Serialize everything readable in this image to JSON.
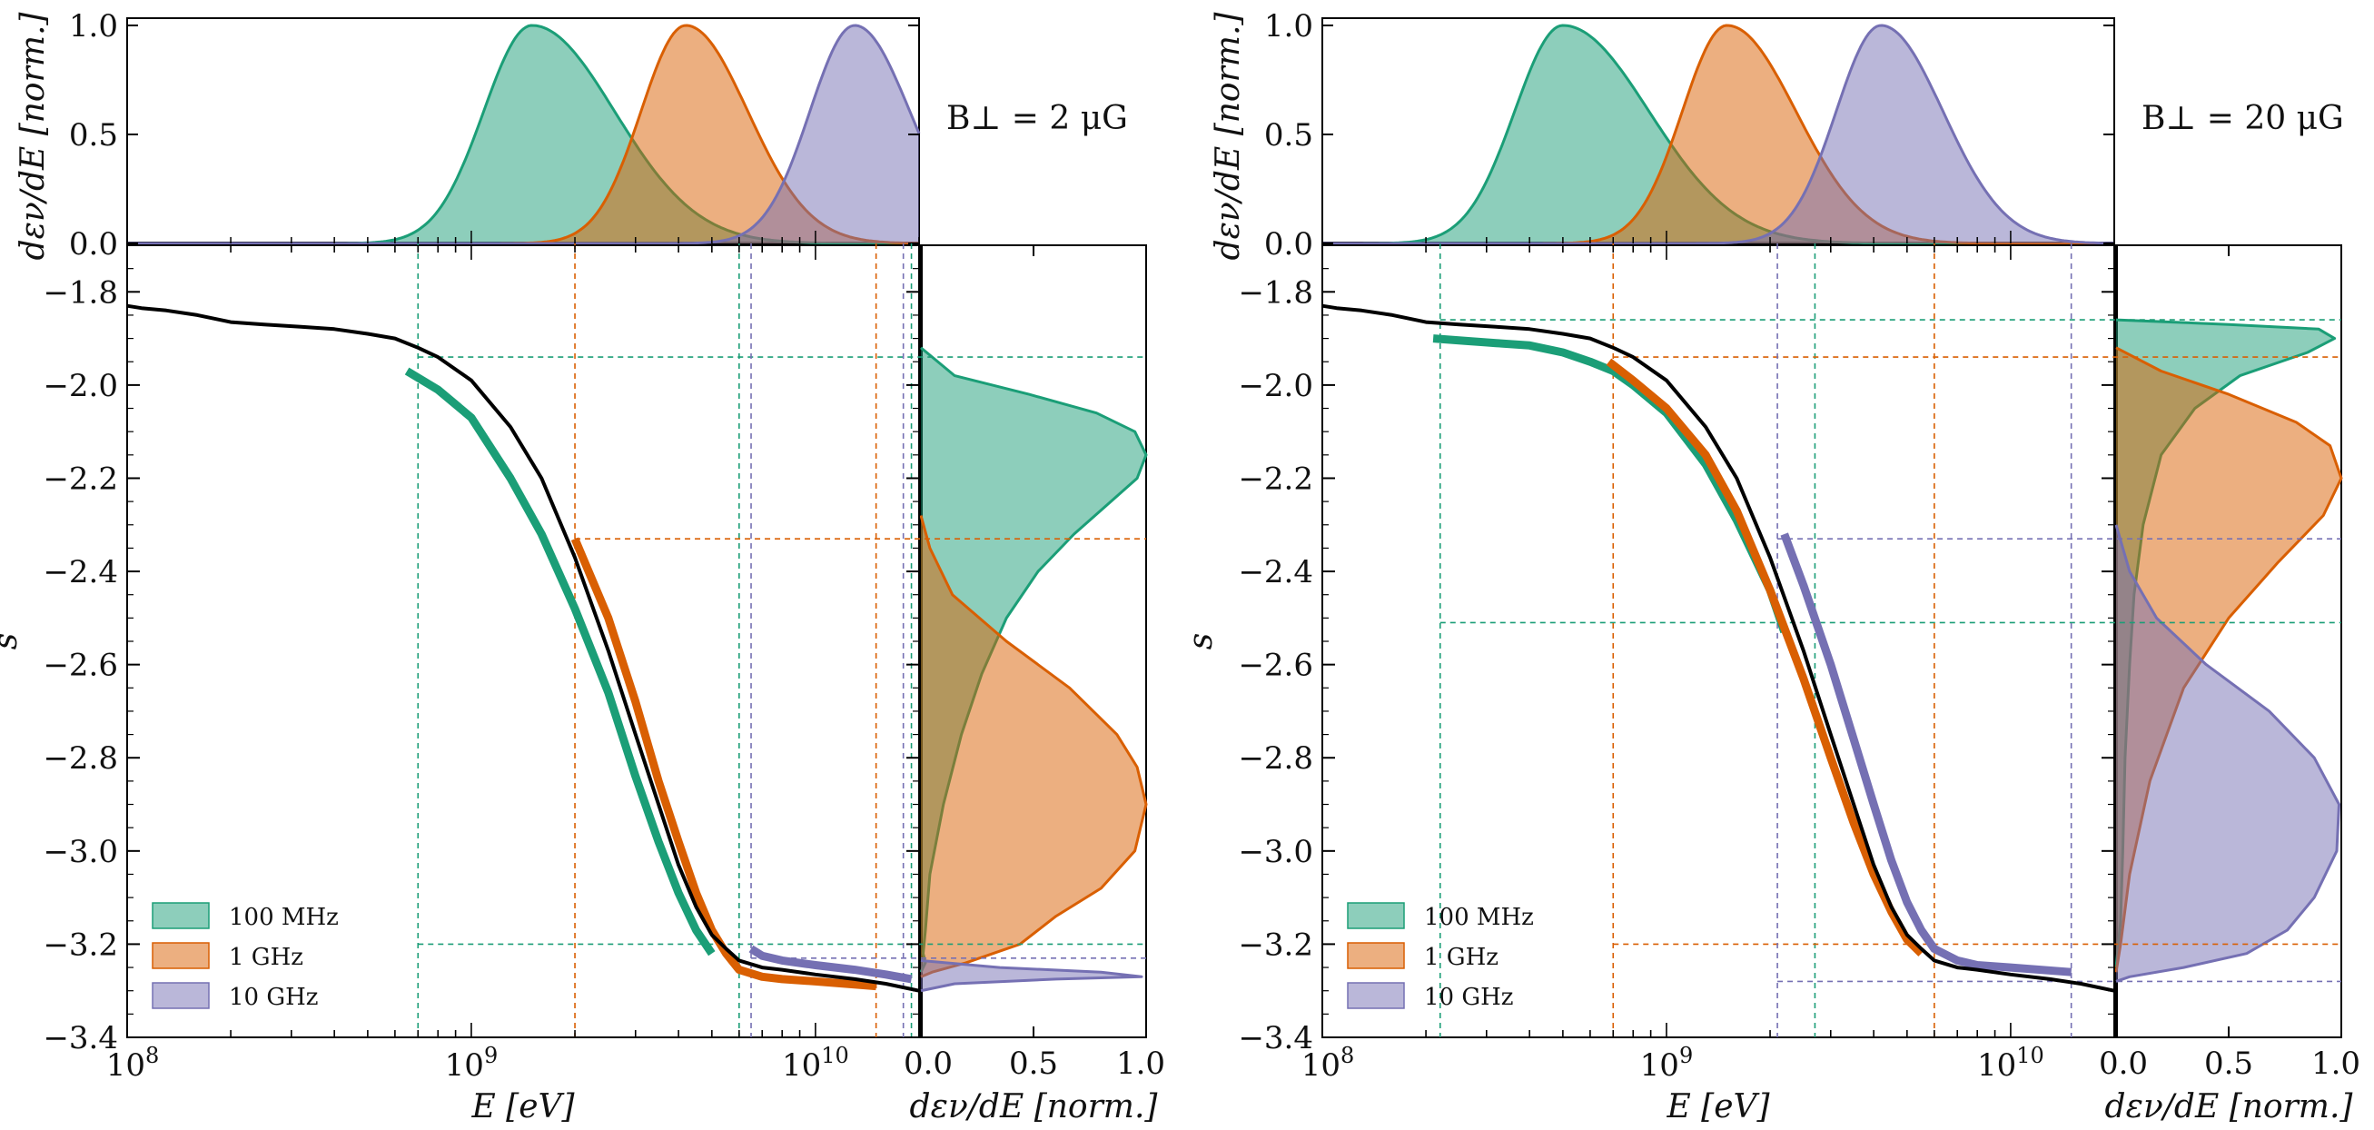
{
  "chart_data": {
    "type": "line",
    "colors": {
      "100 MHz": "#1b9e77",
      "1 GHz": "#d95f02",
      "10 GHz": "#7570b3",
      "total": "#000000"
    },
    "panels": [
      {
        "id": "left",
        "annotation": "B⊥ = 2 μG",
        "main": {
          "xlabel": "E [eV]",
          "ylabel": "s",
          "xscale": "log",
          "xlim": [
            100000000.0,
            20000000000.0
          ],
          "ylim": [
            -3.4,
            -1.7
          ],
          "xticks": [
            "10^8",
            "10^9",
            "10^10"
          ],
          "yticks": [
            "-1.8",
            "-2.0",
            "-2.2",
            "-2.4",
            "-2.6",
            "-2.8",
            "-3.0",
            "-3.2",
            "-3.4"
          ],
          "black_curve": {
            "name": "total",
            "x": [
              100000000.0,
              110000000.0,
              130000000.0,
              160000000.0,
              200000000.0,
              250000000.0,
              320000000.0,
              400000000.0,
              500000000.0,
              600000000.0,
              700000000.0,
              800000000.0,
              1000000000.0,
              1300000000.0,
              1600000000.0,
              2000000000.0,
              2500000000.0,
              3000000000.0,
              3500000000.0,
              4000000000.0,
              4500000000.0,
              5000000000.0,
              5500000000.0,
              6000000000.0,
              7000000000.0,
              8000000000.0,
              10000000000.0,
              13000000000.0,
              16000000000.0,
              20000000000.0
            ],
            "y": [
              -1.83,
              -1.835,
              -1.84,
              -1.85,
              -1.865,
              -1.87,
              -1.875,
              -1.88,
              -1.89,
              -1.9,
              -1.92,
              -1.94,
              -1.99,
              -2.09,
              -2.2,
              -2.37,
              -2.57,
              -2.75,
              -2.9,
              -3.03,
              -3.12,
              -3.18,
              -3.21,
              -3.235,
              -3.25,
              -3.255,
              -3.265,
              -3.275,
              -3.285,
              -3.3
            ]
          },
          "segments": [
            {
              "name": "100 MHz",
              "x": [
                650000000.0,
                800000000.0,
                1000000000.0,
                1300000000.0,
                1600000000.0,
                2000000000.0,
                2500000000.0,
                3000000000.0,
                3500000000.0,
                4000000000.0,
                4500000000.0,
                5000000000.0
              ],
              "y": [
                -1.97,
                -2.01,
                -2.07,
                -2.2,
                -2.32,
                -2.48,
                -2.66,
                -2.84,
                -2.98,
                -3.09,
                -3.17,
                -3.22
              ]
            },
            {
              "name": "1 GHz",
              "x": [
                2000000000.0,
                2500000000.0,
                3000000000.0,
                3500000000.0,
                4000000000.0,
                4500000000.0,
                5000000000.0,
                5500000000.0,
                6000000000.0,
                7000000000.0,
                8000000000.0,
                10000000000.0,
                15000000000.0
              ],
              "y": [
                -2.33,
                -2.5,
                -2.68,
                -2.85,
                -2.98,
                -3.09,
                -3.17,
                -3.22,
                -3.255,
                -3.27,
                -3.275,
                -3.28,
                -3.29
              ]
            },
            {
              "name": "10 GHz",
              "x": [
                6500000000.0,
                7000000000.0,
                8000000000.0,
                10000000000.0,
                13000000000.0,
                16000000000.0,
                19000000000.0
              ],
              "y": [
                -3.21,
                -3.225,
                -3.235,
                -3.245,
                -3.255,
                -3.265,
                -3.275
              ]
            }
          ],
          "guides": [
            {
              "name": "100 MHz",
              "lo_E": 700000000.0,
              "mean_E": 6000000000.0,
              "hi_E": 19000000000.0,
              "hi_s": -1.94,
              "lo_s": -3.2
            },
            {
              "name": "1 GHz",
              "lo_E": 2000000000.0,
              "mean_E": 15000000000.0,
              "hi_s": -2.33
            },
            {
              "name": "10 GHz",
              "lo_E": 6500000000.0,
              "hi_E": 18000000000.0,
              "lo_s": -3.23
            }
          ]
        },
        "top": {
          "ylabel": "dεν/dE [norm.]",
          "ylim": [
            0,
            1.0
          ],
          "yticks": [
            "0.0",
            "0.5",
            "1.0"
          ],
          "curves": [
            {
              "name": "100 MHz",
              "peak_E": 1500000000.0,
              "sigma_left_dex": 0.14,
              "sigma_right_dex": 0.24
            },
            {
              "name": "1 GHz",
              "peak_E": 4200000000.0,
              "sigma_left_dex": 0.13,
              "sigma_right_dex": 0.18
            },
            {
              "name": "10 GHz",
              "peak_E": 13000000000.0,
              "sigma_left_dex": 0.13,
              "sigma_right_dex": 0.16
            }
          ]
        },
        "right": {
          "xlabel": "dεν/dE [norm.]",
          "xlim": [
            0,
            1.0
          ],
          "xticks": [
            "0.0",
            "0.5",
            "1.0"
          ],
          "curves": [
            {
              "name": "100 MHz",
              "s": [
                -1.92,
                -1.98,
                -2.02,
                -2.06,
                -2.1,
                -2.15,
                -2.2,
                -2.26,
                -2.32,
                -2.4,
                -2.5,
                -2.62,
                -2.75,
                -2.9,
                -3.05,
                -3.17,
                -3.22,
                -3.24,
                -3.26
              ],
              "v": [
                0.0,
                0.15,
                0.48,
                0.78,
                0.95,
                1.0,
                0.96,
                0.82,
                0.68,
                0.52,
                0.38,
                0.27,
                0.18,
                0.1,
                0.04,
                0.02,
                0.01,
                0.02,
                0.0
              ]
            },
            {
              "name": "1 GHz",
              "s": [
                -2.28,
                -2.35,
                -2.45,
                -2.55,
                -2.65,
                -2.75,
                -2.82,
                -2.9,
                -3.0,
                -3.08,
                -3.14,
                -3.2,
                -3.24,
                -3.26,
                -3.27
              ],
              "v": [
                0.0,
                0.04,
                0.14,
                0.38,
                0.66,
                0.87,
                0.96,
                1.0,
                0.95,
                0.8,
                0.6,
                0.44,
                0.2,
                0.05,
                0.0
              ]
            },
            {
              "name": "10 GHz",
              "s": [
                -3.235,
                -3.25,
                -3.26,
                -3.27,
                -3.275,
                -3.285,
                -3.3
              ],
              "v": [
                0.0,
                0.35,
                0.8,
                0.98,
                0.6,
                0.15,
                0.0
              ]
            }
          ]
        },
        "legend": [
          "100 MHz",
          "1 GHz",
          "10 GHz"
        ]
      },
      {
        "id": "right",
        "annotation": "B⊥ = 20 μG",
        "main": {
          "xlabel": "E [eV]",
          "ylabel": "s",
          "xscale": "log",
          "xlim": [
            100000000.0,
            20000000000.0
          ],
          "ylim": [
            -3.4,
            -1.7
          ],
          "xticks": [
            "10^8",
            "10^9",
            "10^10"
          ],
          "yticks": [
            "-1.8",
            "-2.0",
            "-2.2",
            "-2.4",
            "-2.6",
            "-2.8",
            "-3.0",
            "-3.2",
            "-3.4"
          ],
          "black_curve": {
            "name": "total",
            "x": [
              100000000.0,
              110000000.0,
              130000000.0,
              160000000.0,
              200000000.0,
              250000000.0,
              320000000.0,
              400000000.0,
              500000000.0,
              600000000.0,
              700000000.0,
              800000000.0,
              1000000000.0,
              1300000000.0,
              1600000000.0,
              2000000000.0,
              2500000000.0,
              3000000000.0,
              3500000000.0,
              4000000000.0,
              4500000000.0,
              5000000000.0,
              5500000000.0,
              6000000000.0,
              7000000000.0,
              8000000000.0,
              10000000000.0,
              13000000000.0,
              16000000000.0,
              20000000000.0
            ],
            "y": [
              -1.83,
              -1.835,
              -1.84,
              -1.85,
              -1.865,
              -1.87,
              -1.875,
              -1.88,
              -1.89,
              -1.9,
              -1.92,
              -1.94,
              -1.99,
              -2.09,
              -2.2,
              -2.37,
              -2.57,
              -2.75,
              -2.9,
              -3.03,
              -3.12,
              -3.18,
              -3.21,
              -3.235,
              -3.25,
              -3.255,
              -3.265,
              -3.275,
              -3.285,
              -3.3
            ]
          },
          "segments": [
            {
              "name": "100 MHz",
              "x": [
                210000000.0,
                260000000.0,
                320000000.0,
                400000000.0,
                500000000.0,
                600000000.0,
                700000000.0,
                800000000.0,
                1000000000.0,
                1300000000.0,
                1600000000.0,
                2000000000.0,
                2200000000.0
              ],
              "y": [
                -1.9,
                -1.905,
                -1.91,
                -1.915,
                -1.93,
                -1.95,
                -1.97,
                -2.0,
                -2.06,
                -2.17,
                -2.29,
                -2.44,
                -2.53
              ]
            },
            {
              "name": "1 GHz",
              "x": [
                680000000.0,
                800000000.0,
                1000000000.0,
                1300000000.0,
                1600000000.0,
                2000000000.0,
                2500000000.0,
                3000000000.0,
                3500000000.0,
                4000000000.0,
                4500000000.0,
                5000000000.0,
                5500000000.0
              ],
              "y": [
                -1.95,
                -1.99,
                -2.05,
                -2.15,
                -2.27,
                -2.44,
                -2.63,
                -2.8,
                -2.94,
                -3.05,
                -3.13,
                -3.19,
                -3.22
              ]
            },
            {
              "name": "10 GHz",
              "x": [
                2200000000.0,
                2500000000.0,
                3000000000.0,
                3500000000.0,
                4000000000.0,
                4500000000.0,
                5000000000.0,
                5500000000.0,
                6000000000.0,
                7000000000.0,
                8000000000.0,
                10000000000.0,
                15000000000.0
              ],
              "y": [
                -2.32,
                -2.43,
                -2.6,
                -2.76,
                -2.9,
                -3.02,
                -3.11,
                -3.17,
                -3.21,
                -3.235,
                -3.245,
                -3.25,
                -3.26
              ]
            }
          ],
          "guides": [
            {
              "name": "100 MHz",
              "lo_E": 220000000.0,
              "hi_E": 2700000000.0,
              "hi_s": -1.86,
              "lo_s": -2.51
            },
            {
              "name": "1 GHz",
              "lo_E": 700000000.0,
              "hi_E": 6000000000.0,
              "hi_s": -1.94,
              "lo_s": -3.2
            },
            {
              "name": "10 GHz",
              "lo_E": 2100000000.0,
              "hi_E": 15000000000.0,
              "hi_s": -2.33,
              "lo_s": -3.28
            }
          ]
        },
        "top": {
          "ylabel": "dεν/dE [norm.]",
          "ylim": [
            0,
            1.0
          ],
          "yticks": [
            "0.0",
            "0.5",
            "1.0"
          ],
          "curves": [
            {
              "name": "100 MHz",
              "peak_E": 500000000.0,
              "sigma_left_dex": 0.14,
              "sigma_right_dex": 0.25
            },
            {
              "name": "1 GHz",
              "peak_E": 1500000000.0,
              "sigma_left_dex": 0.13,
              "sigma_right_dex": 0.2
            },
            {
              "name": "10 GHz",
              "peak_E": 4200000000.0,
              "sigma_left_dex": 0.13,
              "sigma_right_dex": 0.18
            }
          ]
        },
        "right": {
          "xlabel": "dεν/dE [norm.]",
          "xlim": [
            0,
            1.0
          ],
          "xticks": [
            "0.0",
            "0.5",
            "1.0"
          ],
          "curves": [
            {
              "name": "100 MHz",
              "s": [
                -1.86,
                -1.87,
                -1.88,
                -1.9,
                -1.93,
                -1.98,
                -2.05,
                -2.15,
                -2.3,
                -2.45,
                -2.6,
                -2.8,
                -3.0,
                -3.15,
                -3.25
              ],
              "v": [
                0.0,
                0.5,
                0.9,
                0.97,
                0.85,
                0.55,
                0.35,
                0.2,
                0.12,
                0.08,
                0.06,
                0.04,
                0.03,
                0.02,
                0.0
              ]
            },
            {
              "name": "1 GHz",
              "s": [
                -1.92,
                -1.97,
                -2.02,
                -2.08,
                -2.13,
                -2.2,
                -2.28,
                -2.38,
                -2.5,
                -2.65,
                -2.85,
                -3.05,
                -3.2,
                -3.26
              ],
              "v": [
                0.0,
                0.2,
                0.5,
                0.8,
                0.95,
                1.0,
                0.92,
                0.72,
                0.5,
                0.3,
                0.15,
                0.06,
                0.02,
                0.0
              ]
            },
            {
              "name": "10 GHz",
              "s": [
                -2.3,
                -2.4,
                -2.5,
                -2.6,
                -2.7,
                -2.8,
                -2.9,
                -3.0,
                -3.1,
                -3.17,
                -3.22,
                -3.25,
                -3.27,
                -3.28
              ],
              "v": [
                0.0,
                0.06,
                0.18,
                0.4,
                0.68,
                0.88,
                0.99,
                0.98,
                0.88,
                0.76,
                0.58,
                0.3,
                0.06,
                0.0
              ]
            }
          ]
        },
        "legend": [
          "100 MHz",
          "1 GHz",
          "10 GHz"
        ]
      }
    ]
  }
}
